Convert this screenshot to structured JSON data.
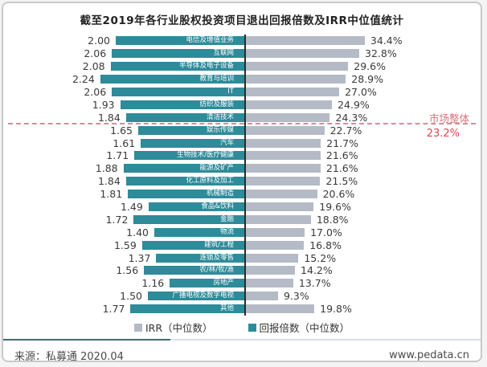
{
  "title": "截至2019年各行业股权投资项目退出回报倍数及IRR中位值统计",
  "chart_data": {
    "type": "bar",
    "orientation": "horizontal-diverging",
    "title": "截至2019年各行业股权投资项目退出回报倍数及IRR中位值统计",
    "categories": [
      "电信及增值业务",
      "互联网",
      "半导体及电子设备",
      "教育与培训",
      "IT",
      "纺织及服装",
      "清洁技术",
      "娱乐传媒",
      "汽车",
      "生物技术/医疗健康",
      "能源及矿产",
      "化工原料及加工",
      "机械制造",
      "食品&饮料",
      "金融",
      "物流",
      "建筑/工程",
      "连锁及零售",
      "农/林/牧/渔",
      "房地产",
      "广播电视及数字电视",
      "其他"
    ],
    "series": [
      {
        "name": "回报倍数（中位数）",
        "color": "#2e8b99",
        "side": "left",
        "values": [
          2.0,
          2.06,
          2.08,
          2.24,
          2.06,
          1.93,
          1.84,
          1.65,
          1.61,
          1.71,
          1.88,
          1.84,
          1.81,
          1.49,
          1.72,
          1.4,
          1.59,
          1.37,
          1.56,
          1.16,
          1.5,
          1.77
        ]
      },
      {
        "name": "IRR（中位数）",
        "color": "#b4bbc6",
        "side": "right",
        "unit": "%",
        "values": [
          34.4,
          32.8,
          29.6,
          28.9,
          27.0,
          24.9,
          24.3,
          22.7,
          21.7,
          21.6,
          21.6,
          21.5,
          20.6,
          19.6,
          18.8,
          17.0,
          16.8,
          15.2,
          14.2,
          13.7,
          9.3,
          19.8
        ]
      }
    ],
    "rows": [
      {
        "label": "电信及增值业务",
        "multiple": "2.00",
        "multiple_value": 2.0,
        "irr": "34.4%",
        "irr_value": 34.4
      },
      {
        "label": "互联网",
        "multiple": "2.06",
        "multiple_value": 2.06,
        "irr": "32.8%",
        "irr_value": 32.8
      },
      {
        "label": "半导体及电子设备",
        "multiple": "2.08",
        "multiple_value": 2.08,
        "irr": "29.6%",
        "irr_value": 29.6
      },
      {
        "label": "教育与培训",
        "multiple": "2.24",
        "multiple_value": 2.24,
        "irr": "28.9%",
        "irr_value": 28.9
      },
      {
        "label": "IT",
        "multiple": "2.06",
        "multiple_value": 2.06,
        "irr": "27.0%",
        "irr_value": 27.0
      },
      {
        "label": "纺织及服装",
        "multiple": "1.93",
        "multiple_value": 1.93,
        "irr": "24.9%",
        "irr_value": 24.9
      },
      {
        "label": "清洁技术",
        "multiple": "1.84",
        "multiple_value": 1.84,
        "irr": "24.3%",
        "irr_value": 24.3
      },
      {
        "label": "娱乐传媒",
        "multiple": "1.65",
        "multiple_value": 1.65,
        "irr": "22.7%",
        "irr_value": 22.7
      },
      {
        "label": "汽车",
        "multiple": "1.61",
        "multiple_value": 1.61,
        "irr": "21.7%",
        "irr_value": 21.7
      },
      {
        "label": "生物技术/医疗健康",
        "multiple": "1.71",
        "multiple_value": 1.71,
        "irr": "21.6%",
        "irr_value": 21.6
      },
      {
        "label": "能源及矿产",
        "multiple": "1.88",
        "multiple_value": 1.88,
        "irr": "21.6%",
        "irr_value": 21.6
      },
      {
        "label": "化工原料及加工",
        "multiple": "1.84",
        "multiple_value": 1.84,
        "irr": "21.5%",
        "irr_value": 21.5
      },
      {
        "label": "机械制造",
        "multiple": "1.81",
        "multiple_value": 1.81,
        "irr": "20.6%",
        "irr_value": 20.6
      },
      {
        "label": "食品&饮料",
        "multiple": "1.49",
        "multiple_value": 1.49,
        "irr": "19.6%",
        "irr_value": 19.6
      },
      {
        "label": "金融",
        "multiple": "1.72",
        "multiple_value": 1.72,
        "irr": "18.8%",
        "irr_value": 18.8
      },
      {
        "label": "物流",
        "multiple": "1.40",
        "multiple_value": 1.4,
        "irr": "17.0%",
        "irr_value": 17.0
      },
      {
        "label": "建筑/工程",
        "multiple": "1.59",
        "multiple_value": 1.59,
        "irr": "16.8%",
        "irr_value": 16.8
      },
      {
        "label": "连锁及零售",
        "multiple": "1.37",
        "multiple_value": 1.37,
        "irr": "15.2%",
        "irr_value": 15.2
      },
      {
        "label": "农/林/牧/渔",
        "multiple": "1.56",
        "multiple_value": 1.56,
        "irr": "14.2%",
        "irr_value": 14.2
      },
      {
        "label": "房地产",
        "multiple": "1.16",
        "multiple_value": 1.16,
        "irr": "13.7%",
        "irr_value": 13.7
      },
      {
        "label": "广播电视及数字电视",
        "multiple": "1.50",
        "multiple_value": 1.5,
        "irr": "9.3%",
        "irr_value": 9.3
      },
      {
        "label": "其他",
        "multiple": "1.77",
        "multiple_value": 1.77,
        "irr": "19.8%",
        "irr_value": 19.8
      }
    ],
    "reference_line": {
      "label": "市场整体",
      "value": "23.2%",
      "after_category_index": 6,
      "label_color": "#d9717b",
      "value_color": "#e04350",
      "line_color": "#cf9096"
    },
    "axis_color": "#2b2b2b",
    "legend_position": "bottom-center",
    "grid": false
  },
  "legend": [
    {
      "label": "IRR（中位数）",
      "color": "#b4bbc6"
    },
    {
      "label": "回报倍数（中位数）",
      "color": "#2e8b99"
    }
  ],
  "footer": {
    "source": "来源：私募通 2020.04",
    "website": "www.pedata.cn"
  }
}
